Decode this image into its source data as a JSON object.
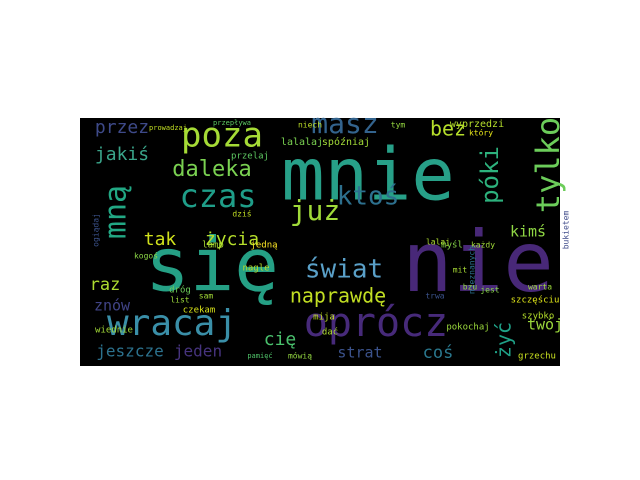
{
  "chart_data": {
    "type": "wordcloud",
    "background": "#000000",
    "words": [
      {
        "text": "mnie",
        "color": "#27a088"
      },
      {
        "text": "nie",
        "color": "#482878"
      },
      {
        "text": "się",
        "color": "#25a085"
      },
      {
        "text": "oprócz",
        "color": "#472a7a"
      },
      {
        "text": "wracaj",
        "color": "#3a8fa8"
      },
      {
        "text": "poza",
        "color": "#a5db36"
      },
      {
        "text": "masz",
        "color": "#33638d"
      },
      {
        "text": "czas",
        "color": "#1f9e89"
      },
      {
        "text": "już",
        "color": "#a0da39"
      },
      {
        "text": "ktoś",
        "color": "#2d708e"
      },
      {
        "text": "mną",
        "color": "#22a884"
      },
      {
        "text": "tylko",
        "color": "#6ccd5a"
      },
      {
        "text": "przez",
        "color": "#3e4a89"
      },
      {
        "text": "jakiś",
        "color": "#3aa58a"
      },
      {
        "text": "daleka",
        "color": "#7ad151"
      },
      {
        "text": "bez",
        "color": "#b5de2b"
      },
      {
        "text": "póki",
        "color": "#2db27d"
      },
      {
        "text": "świat",
        "color": "#5aa0c8"
      },
      {
        "text": "naprawdę",
        "color": "#c2df23"
      },
      {
        "text": "tak",
        "color": "#d0e11c"
      },
      {
        "text": "życia",
        "color": "#b5de2b"
      },
      {
        "text": "kimś",
        "color": "#8fd744"
      },
      {
        "text": "żyć",
        "color": "#1fa187"
      },
      {
        "text": "raz",
        "color": "#addc30"
      },
      {
        "text": "znów",
        "color": "#414487"
      },
      {
        "text": "twój",
        "color": "#9bd93c"
      },
      {
        "text": "jeszcze",
        "color": "#2c728e"
      },
      {
        "text": "jeden",
        "color": "#46337e"
      },
      {
        "text": "cię",
        "color": "#4ac16d"
      },
      {
        "text": "strat",
        "color": "#3b528b"
      },
      {
        "text": "coś",
        "color": "#2a788e"
      },
      {
        "text": "szczęściu",
        "color": "#dde318"
      },
      {
        "text": "grzechu",
        "color": "#c8e020"
      },
      {
        "text": "lalalaj",
        "color": "#7ad151"
      },
      {
        "text": "spóźniaj",
        "color": "#a2da37"
      },
      {
        "text": "przelaj",
        "color": "#5ec962"
      },
      {
        "text": "nagle",
        "color": "#b8de29"
      },
      {
        "text": "jedną",
        "color": "#fde725"
      },
      {
        "text": "lamp",
        "color": "#a8db34"
      },
      {
        "text": "wiednie",
        "color": "#a2da37"
      },
      {
        "text": "czekam",
        "color": "#d8e219"
      },
      {
        "text": "mija",
        "color": "#c0df25"
      },
      {
        "text": "dać",
        "color": "#b0dd2f"
      },
      {
        "text": "pokochaj",
        "color": "#9bd93c"
      },
      {
        "text": "mówią",
        "color": "#93d741"
      },
      {
        "text": "pamięć",
        "color": "#50c46a"
      },
      {
        "text": "szybko",
        "color": "#b5de2b"
      },
      {
        "text": "warta",
        "color": "#9dd93b"
      },
      {
        "text": "myśl",
        "color": "#86d549"
      },
      {
        "text": "każdy",
        "color": "#a0da39"
      },
      {
        "text": "wyprzedzi",
        "color": "#b5de2b"
      },
      {
        "text": "niech",
        "color": "#bddf26"
      },
      {
        "text": "tym",
        "color": "#95d840"
      },
      {
        "text": "dróg",
        "color": "#6ccd5a"
      },
      {
        "text": "dziś",
        "color": "#c2df23"
      },
      {
        "text": "nieznanych",
        "color": "#2c728e"
      },
      {
        "text": "jest",
        "color": "#87d549"
      },
      {
        "text": "trwa",
        "color": "#3b528b"
      },
      {
        "text": "mit",
        "color": "#a8db34"
      },
      {
        "text": "bzu",
        "color": "#8fd744"
      },
      {
        "text": "list",
        "color": "#9bd93c"
      },
      {
        "text": "sam",
        "color": "#a2da37"
      },
      {
        "text": "kogoś",
        "color": "#8bd646"
      },
      {
        "text": "ogiądaj",
        "color": "#3b528b"
      },
      {
        "text": "który",
        "color": "#e5e419"
      },
      {
        "text": "lalaj",
        "color": "#addc30"
      },
      {
        "text": "bukietem",
        "color": "#3e4a89"
      },
      {
        "text": "prowadzaj",
        "color": "#c2df23"
      },
      {
        "text": "przepływa",
        "color": "#5ec962"
      }
    ]
  }
}
